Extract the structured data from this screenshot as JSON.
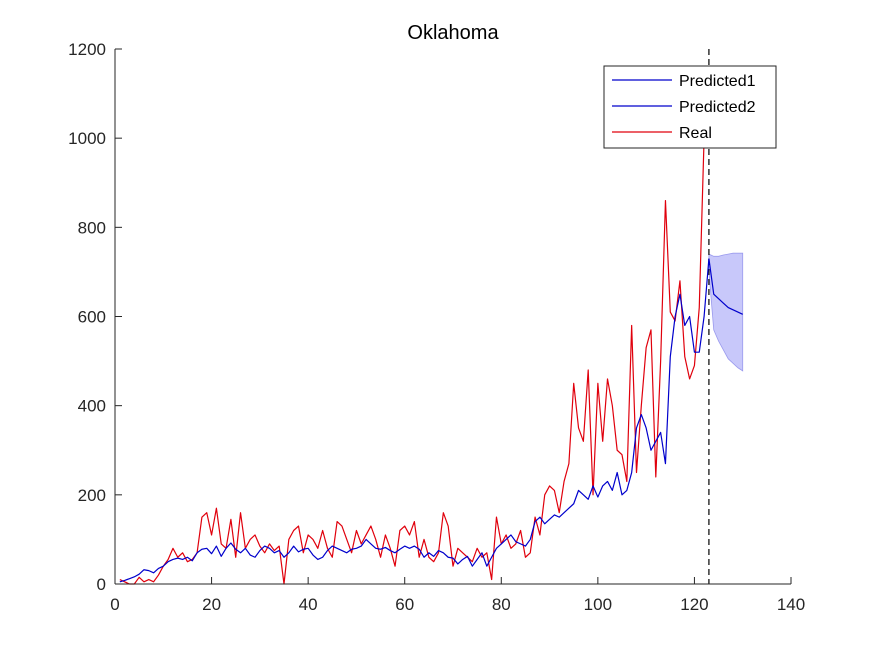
{
  "chart_data": {
    "type": "line",
    "title": "Oklahoma",
    "xlabel": "",
    "ylabel": "",
    "xlim": [
      0,
      140
    ],
    "ylim": [
      0,
      1200
    ],
    "xticks": [
      0,
      20,
      40,
      60,
      80,
      100,
      120,
      140
    ],
    "yticks": [
      0,
      200,
      400,
      600,
      800,
      1000,
      1200
    ],
    "xtick_labels": [
      "0",
      "20",
      "40",
      "60",
      "80",
      "100",
      "120",
      "140"
    ],
    "ytick_labels": [
      "0",
      "200",
      "400",
      "600",
      "800",
      "1000",
      "1200"
    ],
    "grid": false,
    "legend_position": "top-right",
    "vertical_marker_x": 123,
    "series": [
      {
        "name": "Predicted1",
        "color": "#0000cc",
        "x": [
          1,
          2,
          3,
          4,
          5,
          6,
          7,
          8,
          9,
          10,
          11,
          12,
          13,
          14,
          15,
          16,
          17,
          18,
          19,
          20,
          21,
          22,
          23,
          24,
          25,
          26,
          27,
          28,
          29,
          30,
          31,
          32,
          33,
          34,
          35,
          36,
          37,
          38,
          39,
          40,
          41,
          42,
          43,
          44,
          45,
          46,
          47,
          48,
          49,
          50,
          51,
          52,
          53,
          54,
          55,
          56,
          57,
          58,
          59,
          60,
          61,
          62,
          63,
          64,
          65,
          66,
          67,
          68,
          69,
          70,
          71,
          72,
          73,
          74,
          75,
          76,
          77,
          78,
          79,
          80,
          81,
          82,
          83,
          84,
          85,
          86,
          87,
          88,
          89,
          90,
          91,
          92,
          93,
          94,
          95,
          96,
          97,
          98,
          99,
          100,
          101,
          102,
          103,
          104,
          105,
          106,
          107,
          108,
          109,
          110,
          111,
          112,
          113,
          114,
          115,
          116,
          117,
          118,
          119,
          120,
          121,
          122,
          123
        ],
        "values": [
          5,
          8,
          12,
          16,
          22,
          32,
          30,
          25,
          35,
          40,
          50,
          55,
          58,
          55,
          60,
          52,
          70,
          78,
          80,
          68,
          85,
          62,
          80,
          92,
          78,
          70,
          80,
          65,
          60,
          75,
          85,
          80,
          70,
          75,
          60,
          70,
          85,
          72,
          78,
          80,
          65,
          55,
          60,
          75,
          85,
          80,
          75,
          70,
          78,
          80,
          85,
          100,
          90,
          80,
          78,
          82,
          75,
          70,
          78,
          85,
          80,
          85,
          78,
          60,
          70,
          62,
          75,
          70,
          60,
          58,
          45,
          55,
          62,
          40,
          55,
          70,
          40,
          60,
          80,
          90,
          100,
          110,
          95,
          90,
          85,
          100,
          140,
          150,
          135,
          145,
          155,
          150,
          160,
          170,
          180,
          210,
          200,
          190,
          220,
          195,
          220,
          230,
          210,
          250,
          200,
          210,
          250,
          350,
          380,
          350,
          300,
          320,
          340,
          270,
          510,
          600,
          650,
          580,
          600,
          520,
          520,
          600,
          730
        ]
      },
      {
        "name": "Predicted2",
        "color": "#0000cc",
        "x": [
          123,
          124,
          125,
          126,
          127,
          128,
          129,
          130
        ],
        "values": [
          730,
          650,
          640,
          630,
          620,
          615,
          610,
          605
        ],
        "band_lower": [
          700,
          570,
          545,
          525,
          505,
          495,
          485,
          478
        ],
        "band_upper": [
          740,
          735,
          735,
          738,
          740,
          742,
          742,
          742
        ]
      },
      {
        "name": "Real",
        "color": "#e0000c",
        "x": [
          1,
          2,
          3,
          4,
          5,
          6,
          7,
          8,
          9,
          10,
          11,
          12,
          13,
          14,
          15,
          16,
          17,
          18,
          19,
          20,
          21,
          22,
          23,
          24,
          25,
          26,
          27,
          28,
          29,
          30,
          31,
          32,
          33,
          34,
          35,
          36,
          37,
          38,
          39,
          40,
          41,
          42,
          43,
          44,
          45,
          46,
          47,
          48,
          49,
          50,
          51,
          52,
          53,
          54,
          55,
          56,
          57,
          58,
          59,
          60,
          61,
          62,
          63,
          64,
          65,
          66,
          67,
          68,
          69,
          70,
          71,
          72,
          73,
          74,
          75,
          76,
          77,
          78,
          79,
          80,
          81,
          82,
          83,
          84,
          85,
          86,
          87,
          88,
          89,
          90,
          91,
          92,
          93,
          94,
          95,
          96,
          97,
          98,
          99,
          100,
          101,
          102,
          103,
          104,
          105,
          106,
          107,
          108,
          109,
          110,
          111,
          112,
          113,
          114,
          115,
          116,
          117,
          118,
          119,
          120,
          121,
          122
        ],
        "values": [
          10,
          5,
          0,
          0,
          15,
          5,
          10,
          5,
          20,
          40,
          55,
          80,
          60,
          70,
          50,
          55,
          70,
          150,
          160,
          110,
          170,
          90,
          80,
          145,
          60,
          160,
          80,
          100,
          110,
          85,
          70,
          90,
          75,
          85,
          0,
          100,
          120,
          130,
          70,
          110,
          100,
          80,
          120,
          80,
          60,
          140,
          130,
          100,
          70,
          120,
          90,
          110,
          130,
          100,
          60,
          110,
          80,
          40,
          120,
          130,
          110,
          140,
          60,
          100,
          60,
          50,
          70,
          160,
          130,
          40,
          80,
          70,
          60,
          50,
          80,
          60,
          70,
          10,
          150,
          90,
          110,
          80,
          90,
          120,
          60,
          70,
          150,
          110,
          200,
          220,
          210,
          160,
          230,
          270,
          450,
          350,
          320,
          480,
          200,
          450,
          320,
          460,
          400,
          300,
          290,
          230,
          580,
          250,
          400,
          530,
          570,
          240,
          500,
          860,
          610,
          590,
          680,
          510,
          460,
          490,
          620,
          1000
        ]
      }
    ]
  }
}
